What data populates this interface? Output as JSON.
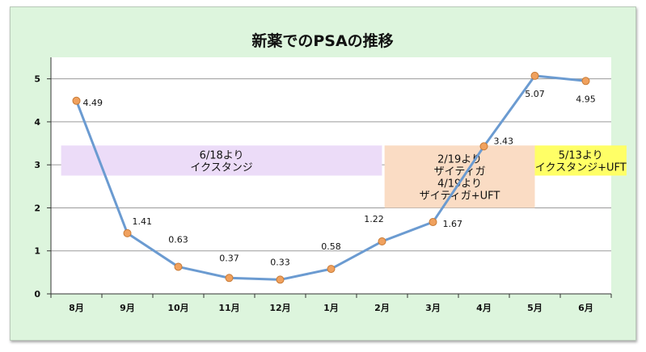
{
  "chart_data": {
    "type": "line",
    "title": "新薬でのPSAの推移",
    "categories": [
      "8月",
      "9月",
      "10月",
      "11月",
      "12月",
      "1月",
      "2月",
      "3月",
      "4月",
      "5月",
      "6月"
    ],
    "series": [
      {
        "name": "PSA",
        "values": [
          4.49,
          1.41,
          0.63,
          0.37,
          0.33,
          0.58,
          1.22,
          1.67,
          3.43,
          5.07,
          4.95
        ]
      }
    ],
    "data_labels": [
      "4.49",
      "1.41",
      "0.63",
      "0.37",
      "0.33",
      "0.58",
      "1.22",
      "1.67",
      "3.43",
      "5.07",
      "4.95"
    ],
    "yticks": [
      "0",
      "1",
      "2",
      "3",
      "4",
      "5"
    ],
    "ylim": [
      0,
      5.5
    ],
    "xlabel": "",
    "ylabel": "",
    "grid": true,
    "annotations": [
      {
        "name": "ixtandi-1",
        "lines": [
          "6/18より",
          "イクスタンジ"
        ],
        "y_range": [
          2.75,
          3.45
        ],
        "x_range": [
          -0.3,
          6.0
        ],
        "color": "#ecdcf8"
      },
      {
        "name": "zytiga",
        "lines": [
          "2/19より",
          "ザイティガ",
          "4/19より",
          "ザイティガ+UFT"
        ],
        "y_range": [
          2.0,
          3.45
        ],
        "x_range": [
          6.05,
          9.0
        ],
        "color": "#fadcc4"
      },
      {
        "name": "ixtandi-uft",
        "lines": [
          "5/13より",
          "イクスタンジ+UFT"
        ],
        "y_range": [
          2.75,
          3.45
        ],
        "x_range": [
          9.0,
          10.8
        ],
        "color": "#ffff66"
      }
    ],
    "colors": {
      "line": "#6b9bd1",
      "marker": "#f0a15e",
      "marker_edge": "#c77a35",
      "plot_bg": "#ffffff",
      "frame_bg": "#ddf5dd",
      "grid": "#9a9a9a"
    }
  }
}
